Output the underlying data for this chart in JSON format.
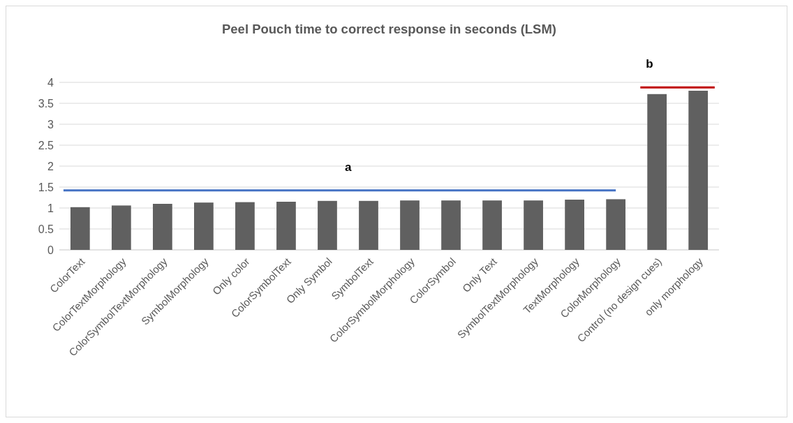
{
  "chart_data": {
    "type": "bar",
    "title": "Peel Pouch time to correct response in seconds (LSM)",
    "categories": [
      "ColorText",
      "ColorTextMorphology",
      "ColorSymbolTextMorphology",
      "SymbolMorphology",
      "Only color",
      "ColorSymbolText",
      "Only Symbol",
      "SymbolText",
      "ColorSymbolMorphology",
      "ColorSymbol",
      "Only Text",
      "SymbolTextMorphology",
      "TextMorphology",
      "ColorMorphology",
      "Control (no design cues)",
      "only morphology"
    ],
    "values": [
      1.02,
      1.06,
      1.1,
      1.13,
      1.14,
      1.15,
      1.17,
      1.17,
      1.18,
      1.18,
      1.18,
      1.18,
      1.2,
      1.21,
      3.72,
      3.8
    ],
    "color": "#606060",
    "ylim": [
      0,
      4
    ],
    "yticks": [
      0,
      0.5,
      1,
      1.5,
      2,
      2.5,
      3,
      3.5,
      4
    ],
    "grid": "y",
    "ref_lines": [
      {
        "axis": "y",
        "value": 1.42,
        "label": "a",
        "color": "#4472c4"
      },
      {
        "axis": "y",
        "value": 3.88,
        "label": "b",
        "color": "#c00000"
      }
    ]
  }
}
